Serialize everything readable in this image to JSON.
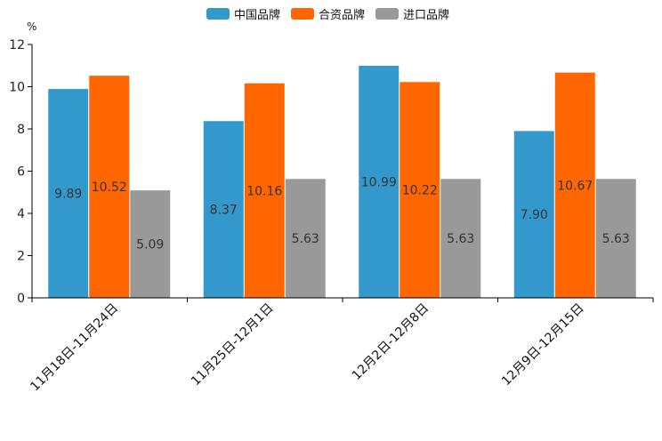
{
  "chart_data": {
    "type": "bar",
    "title": "",
    "unit": "%",
    "xlabel": "",
    "ylabel": "%",
    "ylim": [
      0,
      12
    ],
    "yticks": [
      0,
      2,
      4,
      6,
      8,
      10,
      12
    ],
    "grid": false,
    "legend_position": "top-center",
    "categories": [
      "11月18日-11月24日",
      "11月25日-12月1日",
      "12月2日-12月8日",
      "12月9日-12月15日"
    ],
    "series": [
      {
        "name": "中国品牌",
        "color": "#3399cc",
        "values": [
          9.89,
          8.37,
          10.99,
          7.9
        ],
        "labels": [
          "9.89",
          "8.37",
          "10.99",
          "7.90"
        ]
      },
      {
        "name": "合资品牌",
        "color": "#ff6600",
        "values": [
          10.52,
          10.16,
          10.22,
          10.67
        ],
        "labels": [
          "10.52",
          "10.16",
          "10.22",
          "10.67"
        ]
      },
      {
        "name": "进口品牌",
        "color": "#999999",
        "values": [
          5.09,
          5.63,
          5.63,
          5.63
        ],
        "labels": [
          "5.09",
          "5.63",
          "5.63",
          "5.63"
        ]
      }
    ]
  }
}
